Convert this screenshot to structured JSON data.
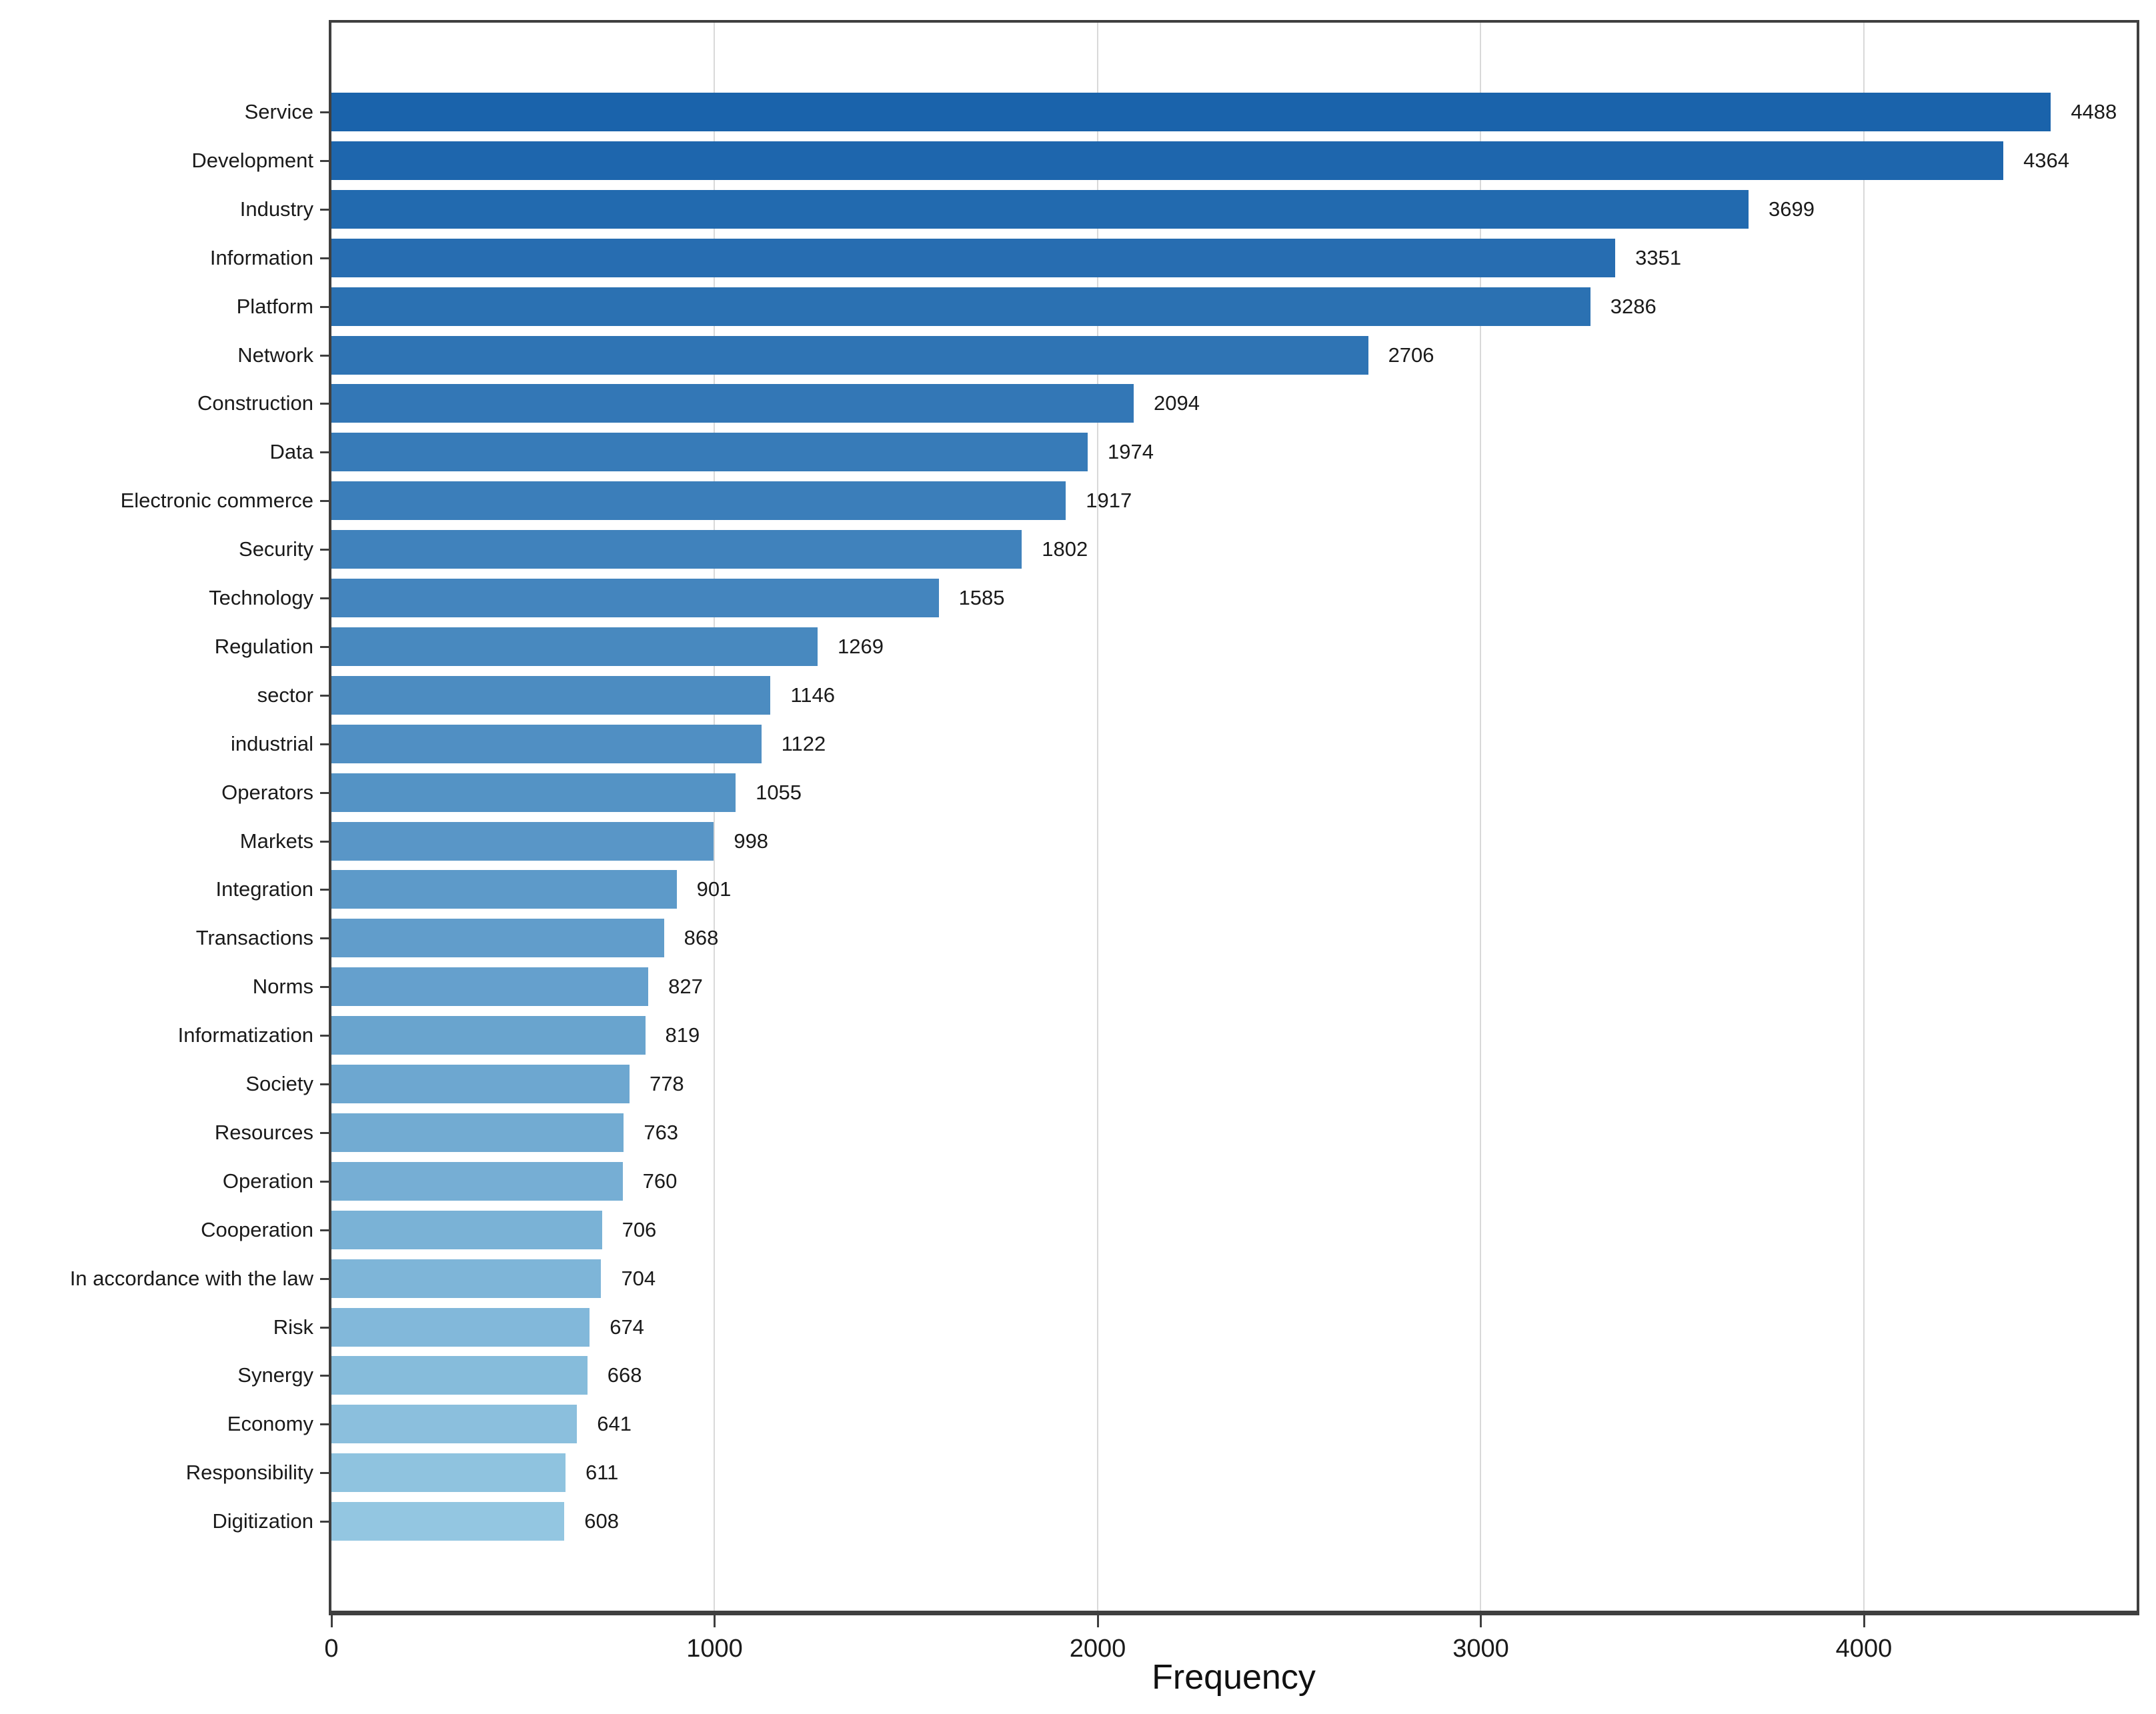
{
  "chart_data": {
    "type": "bar",
    "orientation": "horizontal",
    "title": "",
    "xlabel": "Frequency",
    "ylabel": "",
    "categories": [
      "Service",
      "Development",
      "Industry",
      "Information",
      "Platform",
      "Network",
      "Construction",
      "Data",
      "Electronic commerce",
      "Security",
      "Technology",
      "Regulation",
      "sector",
      "industrial",
      "Operators",
      "Markets",
      "Integration",
      "Transactions",
      "Norms",
      "Informatization",
      "Society",
      "Resources",
      "Operation",
      "Cooperation",
      "In accordance with the law",
      "Risk",
      "Synergy",
      "Economy",
      "Responsibility",
      "Digitization"
    ],
    "values": [
      4488,
      4364,
      3699,
      3351,
      3286,
      2706,
      2094,
      1974,
      1917,
      1802,
      1585,
      1269,
      1146,
      1122,
      1055,
      998,
      901,
      868,
      827,
      819,
      778,
      763,
      760,
      706,
      704,
      674,
      668,
      641,
      611,
      608
    ],
    "value_labels_shown": true,
    "xlim": [
      0,
      4712
    ],
    "x_ticks": [
      0,
      1000,
      2000,
      3000,
      4000
    ],
    "grid": "vertical-light",
    "legend": "none",
    "colors": {
      "bar_top": "#1a63ab",
      "bar_bottom": "#93c6e1",
      "grid": "#d9d9d9",
      "spine": "#3f3f3f",
      "text": "#1a1a1a"
    }
  }
}
